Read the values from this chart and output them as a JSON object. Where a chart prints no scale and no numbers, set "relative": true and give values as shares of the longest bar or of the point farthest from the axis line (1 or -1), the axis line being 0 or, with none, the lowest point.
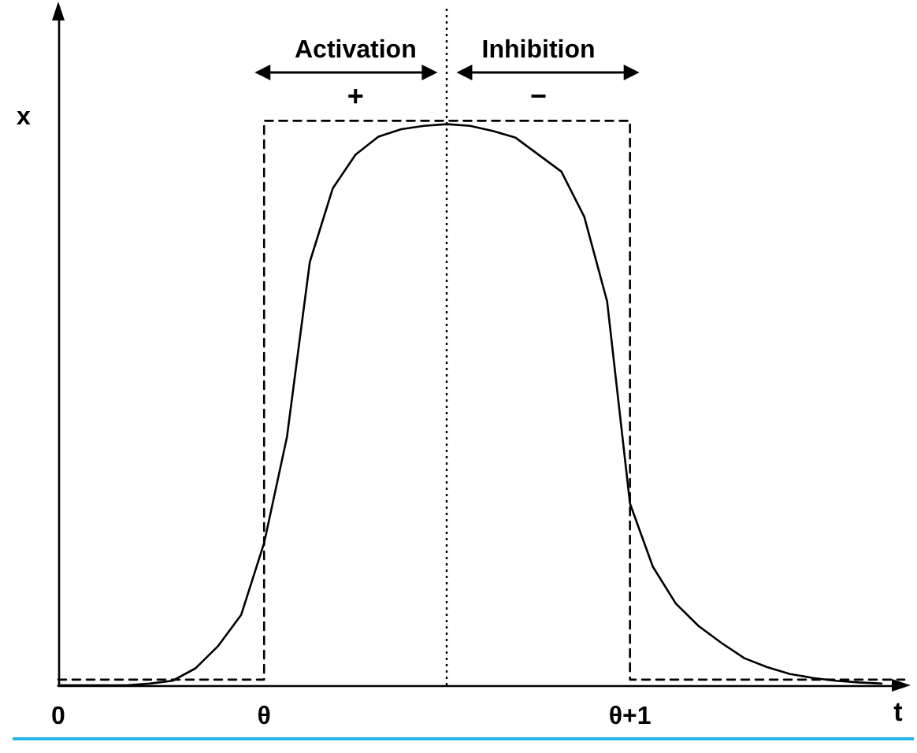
{
  "chart_data": {
    "type": "line",
    "relative": true,
    "xlabel": "t",
    "ylabel": "x",
    "categories": [
      "0",
      null,
      null,
      null,
      null,
      null,
      null,
      null,
      null,
      "θ",
      null,
      null,
      null,
      null,
      null,
      null,
      null,
      null,
      null,
      null,
      null,
      null,
      null,
      null,
      null,
      "θ+1",
      null,
      null,
      null,
      null,
      null,
      null,
      null,
      null,
      null,
      null,
      null,
      null
    ],
    "tick_labels": "x",
    "marker": "none",
    "series": [
      {
        "color": "#000000",
        "line_style": "solid",
        "values": [
          0,
          0,
          0,
          0,
          0.003,
          0.008,
          0.03,
          0.07,
          0.125,
          0.252,
          0.44,
          0.75,
          0.88,
          0.94,
          0.972,
          0.985,
          0.991,
          0.994,
          0.991,
          0.982,
          0.97,
          0.94,
          0.91,
          0.83,
          0.68,
          0.322,
          0.21,
          0.145,
          0.105,
          0.075,
          0.048,
          0.032,
          0.02,
          0.013,
          0.008,
          0.005,
          0.003,
          null
        ]
      },
      {
        "type": "step",
        "color": "#000000",
        "line_style": "dashed",
        "values": [
          0.01,
          0.01,
          0.01,
          0.01,
          0.01,
          0.01,
          0.01,
          0.01,
          0.01,
          1,
          1,
          1,
          1,
          1,
          1,
          1,
          1,
          1,
          1,
          1,
          1,
          1,
          1,
          1,
          1,
          0.01,
          0.01,
          0.01,
          0.01,
          0.01,
          0.01,
          0.01,
          0.01,
          0.01,
          0.01,
          0.01,
          0.01,
          0.01
        ]
      }
    ],
    "annotations": [
      "Activation",
      "+",
      "Inhibition",
      "−"
    ]
  }
}
